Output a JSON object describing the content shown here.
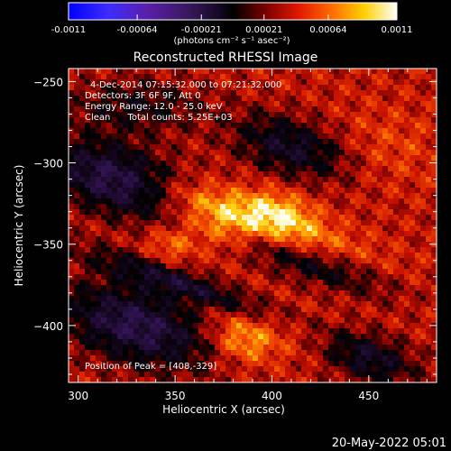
{
  "colorbar": {
    "ticks": [
      "-0.0011",
      "-0.00064",
      "-0.00021",
      "0.00021",
      "0.00064",
      "0.0011"
    ],
    "tick_values": [
      -0.0011,
      -0.00064,
      -0.00021,
      0.00021,
      0.00064,
      0.0011
    ],
    "range": [
      -0.0011,
      0.0011
    ],
    "unit_label": "(photons cm⁻² s⁻¹ asec⁻²)"
  },
  "chart_data": {
    "type": "heatmap",
    "title": "Reconstructed RHESSI Image",
    "xlabel": "Heliocentric X (arcsec)",
    "ylabel": "Heliocentric Y (arcsec)",
    "xlim": [
      295,
      485
    ],
    "ylim": [
      -435,
      -242
    ],
    "xticks": [
      300,
      350,
      400,
      450
    ],
    "yticks": [
      -250,
      -300,
      -350,
      -400
    ],
    "colormap": "rainbow-blue-purple-black-red-yellow-white",
    "peak": [
      408,
      -329
    ],
    "grid": false,
    "annotations": [
      "4-Dec-2014 07:15:32.000 to 07:21:32.000",
      "Detectors: 3F 6F 9F, Att 0",
      "Energy Range: 12.0 - 25.0 keV",
      "Clean      Total counts: 5.25E+03",
      "Position of Peak = [408,-329]"
    ]
  },
  "footer": {
    "date": "20-May-2022 05:01"
  }
}
